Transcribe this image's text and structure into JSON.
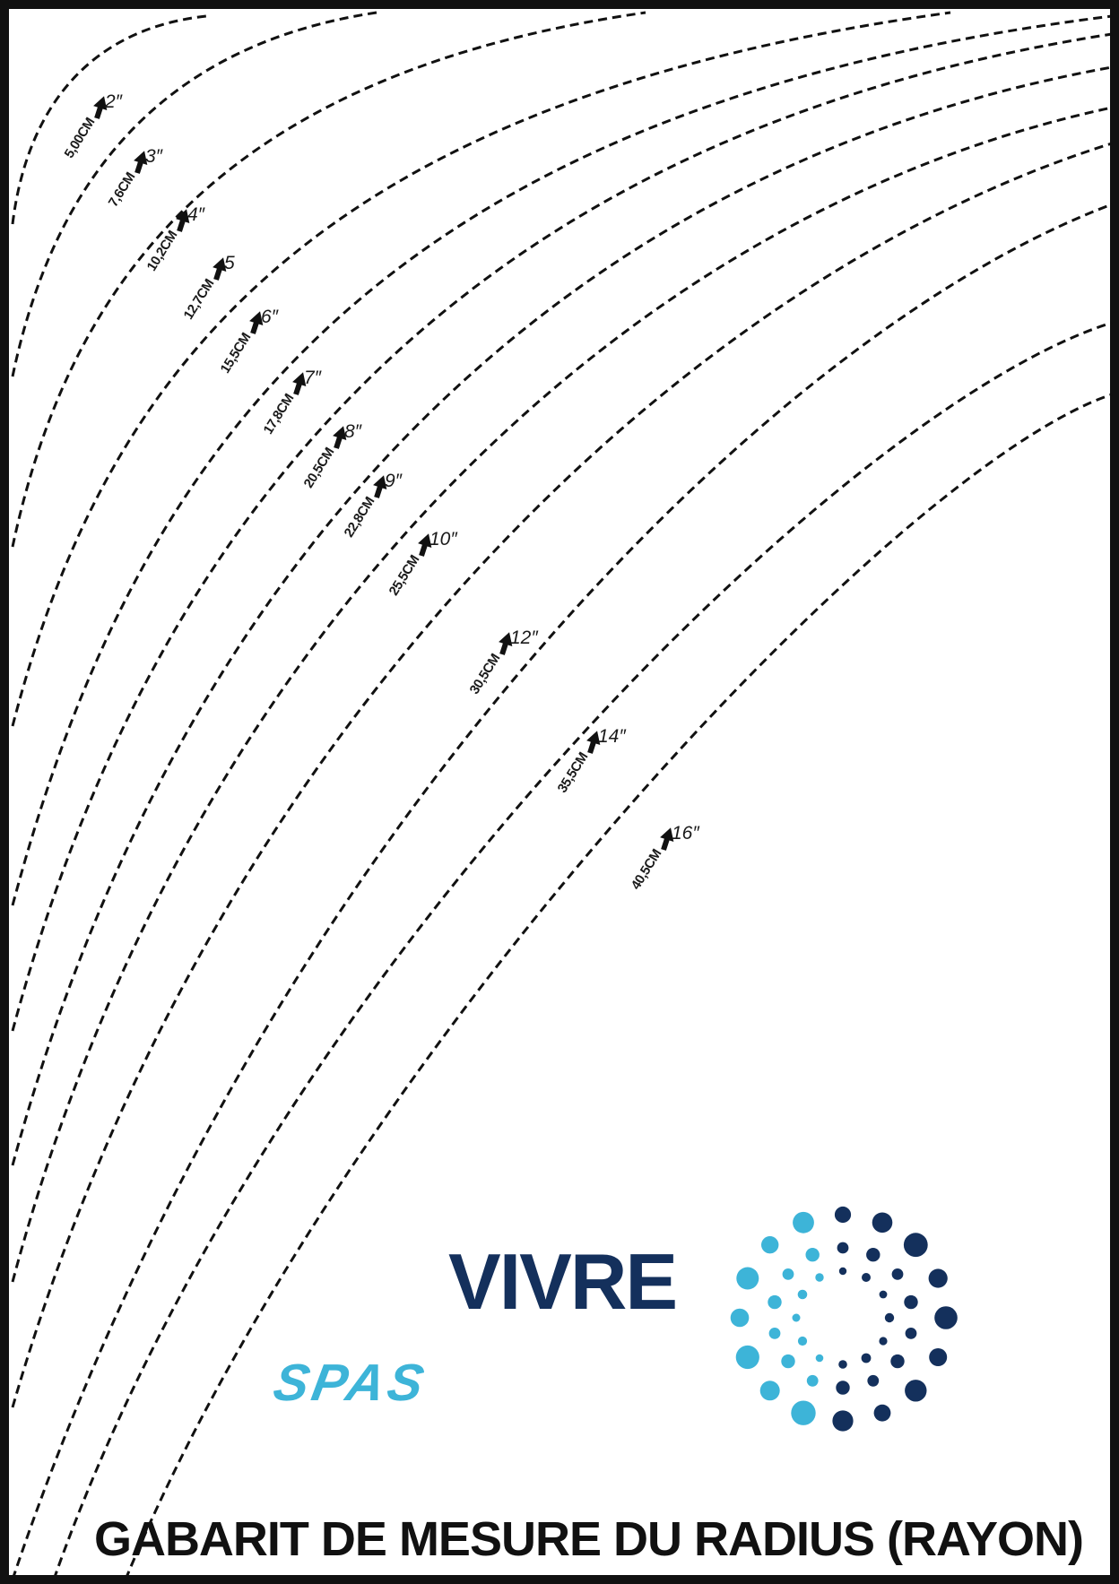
{
  "template": {
    "title": "GABARIT DE MESURE DU RADIUS (RAYON)",
    "radii": [
      {
        "cm": "5,00CM",
        "inch": "2″"
      },
      {
        "cm": "7,6CM",
        "inch": "3″"
      },
      {
        "cm": "10,2CM",
        "inch": "4″"
      },
      {
        "cm": "12,7CM",
        "inch": "5"
      },
      {
        "cm": "15,5CM",
        "inch": "6″"
      },
      {
        "cm": "17,8CM",
        "inch": "7″"
      },
      {
        "cm": "20,5CM",
        "inch": "8″"
      },
      {
        "cm": "22,8CM",
        "inch": "9″"
      },
      {
        "cm": "25,5CM",
        "inch": "10″"
      },
      {
        "cm": "30,5CM",
        "inch": "12″"
      },
      {
        "cm": "35,5CM",
        "inch": "14″"
      },
      {
        "cm": "40,5CM",
        "inch": "16″"
      }
    ]
  },
  "logo": {
    "brand": "VIVRE",
    "sub": "SPAS",
    "dark_color": "#14305c",
    "light_color": "#3db4d8"
  },
  "colors": {
    "line": "#111111",
    "border": "#111111",
    "background": "#ffffff"
  }
}
